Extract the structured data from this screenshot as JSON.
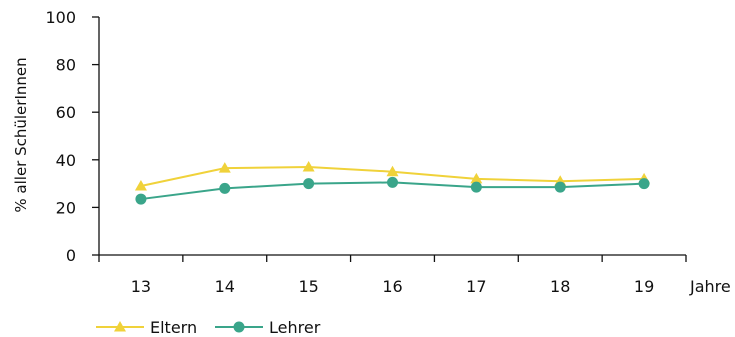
{
  "chart_data": {
    "type": "line",
    "x": [
      "13",
      "14",
      "15",
      "16",
      "17",
      "18",
      "19"
    ],
    "xlabel": "Jahre",
    "ylabel": "% aller SchülerInnen",
    "ylim": [
      0,
      100
    ],
    "yticks": [
      0,
      20,
      40,
      60,
      80,
      100
    ],
    "grid": false,
    "legend": "bottom-left",
    "series": [
      {
        "name": "Eltern",
        "color": "#f0d23a",
        "marker": "triangle",
        "values": [
          29,
          36.5,
          37,
          35,
          32,
          31,
          32
        ]
      },
      {
        "name": "Lehrer",
        "color": "#3aa58a",
        "marker": "circle",
        "values": [
          23.5,
          28,
          30,
          30.5,
          28.5,
          28.5,
          30
        ]
      }
    ]
  }
}
